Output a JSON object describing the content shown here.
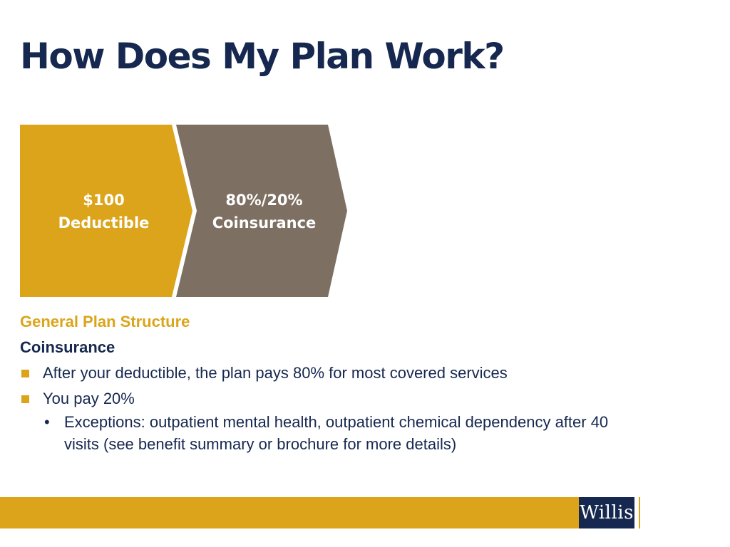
{
  "slide": {
    "title": "How Does My Plan Work?"
  },
  "chevrons": [
    {
      "line1": "$100",
      "line2": "Deductible",
      "color": "#dba41a"
    },
    {
      "line1": "80%/20%",
      "line2": "Coinsurance",
      "color": "#7d7062"
    }
  ],
  "content": {
    "section_heading": "General Plan Structure",
    "sub_heading": "Coinsurance",
    "bullets": [
      "After your deductible, the plan pays 80% for most covered services",
      "You pay 20%"
    ],
    "sub_bullets": [
      "Exceptions: outpatient mental health, outpatient chemical dependency after 40 visits (see benefit summary or brochure for more details)"
    ]
  },
  "footer": {
    "logo_text": "Willis"
  },
  "colors": {
    "navy": "#16284f",
    "gold": "#dba41a",
    "taupe": "#7d7062"
  }
}
